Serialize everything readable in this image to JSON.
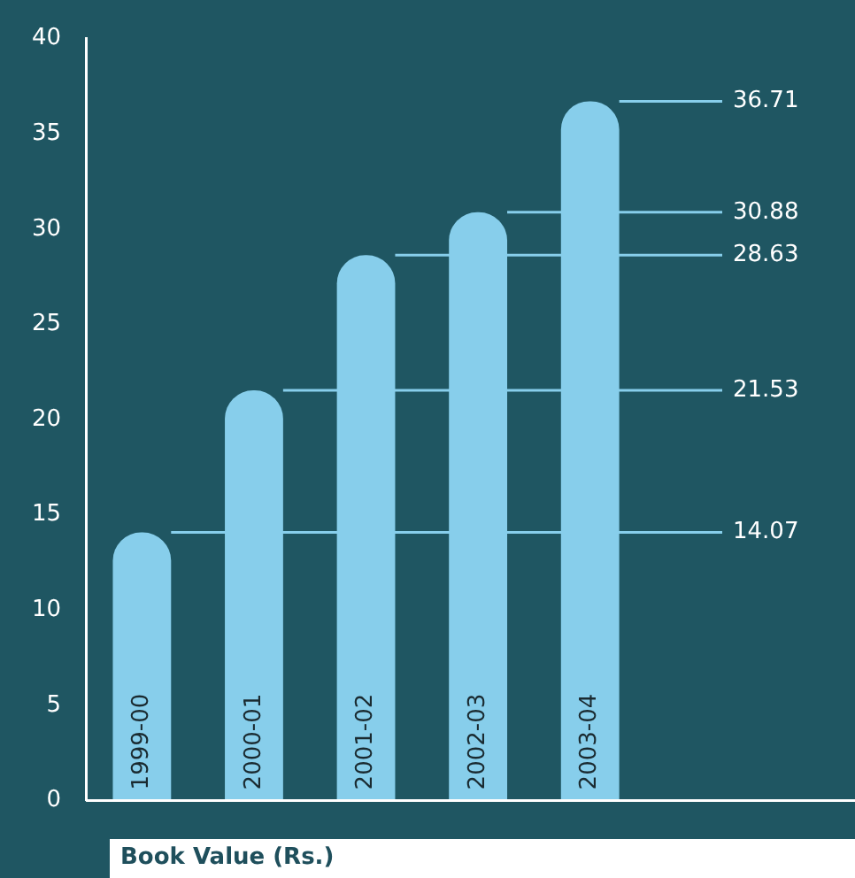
{
  "chart_data": {
    "type": "bar",
    "title": "Book Value (Rs.)",
    "categories": [
      "1999-00",
      "2000-01",
      "2001-02",
      "2002-03",
      "2003-04"
    ],
    "values": [
      14.07,
      21.53,
      28.63,
      30.88,
      36.71
    ],
    "color": "#87ceeb",
    "ylim": [
      0,
      40
    ],
    "yticks": [
      0,
      5,
      10,
      15,
      20,
      25,
      30,
      35,
      40
    ],
    "grid": false,
    "ref_lines": [
      {
        "axis": "y",
        "value": 14.07,
        "label": "14.07",
        "color": "#87ceeb"
      },
      {
        "axis": "y",
        "value": 21.53,
        "label": "21.53",
        "color": "#87ceeb"
      },
      {
        "axis": "y",
        "value": 28.63,
        "label": "28.63",
        "color": "#87ceeb"
      },
      {
        "axis": "y",
        "value": 30.88,
        "label": "30.88",
        "color": "#87ceeb"
      },
      {
        "axis": "y",
        "value": 36.71,
        "label": "36.71",
        "color": "#87ceeb"
      }
    ]
  }
}
